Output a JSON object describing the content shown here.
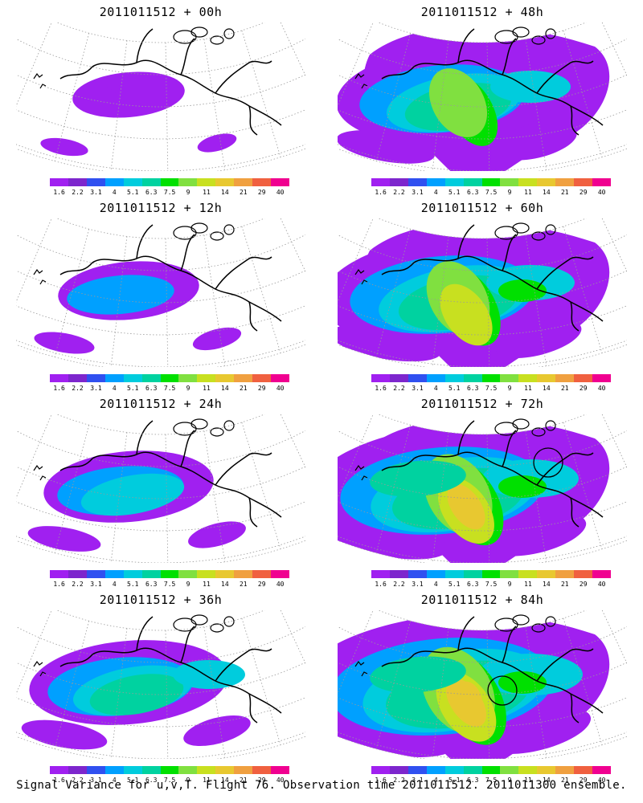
{
  "panels": [
    {
      "title": "2011011512 + 00h",
      "level": 0,
      "circle": false
    },
    {
      "title": "2011011512 + 48h",
      "level": 4,
      "circle": false
    },
    {
      "title": "2011011512 + 12h",
      "level": 1,
      "circle": false
    },
    {
      "title": "2011011512 + 60h",
      "level": 5,
      "circle": false
    },
    {
      "title": "2011011512 + 24h",
      "level": 2,
      "circle": false
    },
    {
      "title": "2011011512 + 72h",
      "level": 6,
      "circle": true
    },
    {
      "title": "2011011512 + 36h",
      "level": 3,
      "circle": false
    },
    {
      "title": "2011011512 + 84h",
      "level": 7,
      "circle": true
    }
  ],
  "colorbar": {
    "labels": [
      "1.6",
      "2.2",
      "3.1",
      "4",
      "5.1",
      "6.3",
      "7.5",
      "9",
      "11",
      "14",
      "21",
      "29",
      "40"
    ],
    "colors": [
      "#a020f0",
      "#7d26cd",
      "#3050f0",
      "#00a0ff",
      "#00ccdd",
      "#00d2a0",
      "#00e000",
      "#80e040",
      "#c8e020",
      "#e8c830",
      "#f0a040",
      "#f06040",
      "#f00090"
    ]
  },
  "footer": "Signal Variance for u,v,T. Flight 76. Observation time 2011011512. 2011011300 ensemble."
}
